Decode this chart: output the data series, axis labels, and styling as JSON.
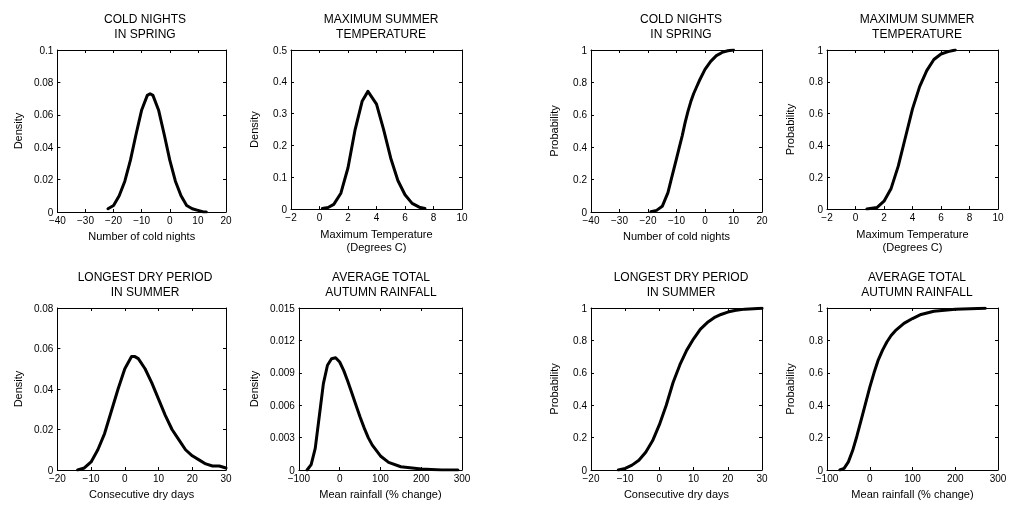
{
  "chart_data": [
    {
      "type": "line",
      "title": "COLD NIGHTS\nIN SPRING",
      "xlabel": "Number of cold nights",
      "ylabel": "Density",
      "color": "#000000",
      "grid": false,
      "x": [
        -22,
        -20,
        -18,
        -16,
        -14,
        -12,
        -10,
        -8,
        -7,
        -6,
        -4,
        -2,
        0,
        2,
        4,
        6,
        8,
        10,
        12,
        13
      ],
      "values": [
        0.002,
        0.004,
        0.01,
        0.019,
        0.032,
        0.048,
        0.063,
        0.072,
        0.073,
        0.072,
        0.063,
        0.048,
        0.032,
        0.019,
        0.01,
        0.004,
        0.002,
        0.001,
        0.0,
        0.0
      ],
      "xlim": [
        -40,
        20
      ],
      "xticks": [
        {
          "value": -40,
          "label": "−40"
        },
        {
          "value": -30,
          "label": "−30"
        },
        {
          "value": -20,
          "label": "−20"
        },
        {
          "value": -10,
          "label": "−10"
        },
        0,
        10,
        20
      ],
      "ylim": [
        0,
        0.1
      ],
      "yticks": [
        0,
        0.02,
        0.04,
        0.06,
        0.08,
        0.1
      ]
    },
    {
      "type": "line",
      "title": "MAXIMUM SUMMER\nTEMPERATURE",
      "xlabel": "Maximum Temperature\n(Degrees C)",
      "ylabel": "Density",
      "color": "#000000",
      "grid": false,
      "x": [
        0.2,
        0.6,
        1,
        1.5,
        2,
        2.5,
        3,
        3.4,
        4,
        4.5,
        5,
        5.5,
        6,
        6.5,
        7,
        7.4
      ],
      "values": [
        0.002,
        0.005,
        0.015,
        0.05,
        0.13,
        0.25,
        0.34,
        0.37,
        0.33,
        0.25,
        0.16,
        0.09,
        0.045,
        0.018,
        0.006,
        0.002
      ],
      "xlim": [
        -2,
        10
      ],
      "xticks": [
        {
          "value": -2,
          "label": "−2"
        },
        0,
        2,
        4,
        6,
        8,
        10
      ],
      "ylim": [
        0,
        0.5
      ],
      "yticks": [
        0,
        0.1,
        0.2,
        0.3,
        0.4,
        0.5
      ]
    },
    {
      "type": "line",
      "title": "COLD NIGHTS\nIN SPRING",
      "xlabel": "Number of cold nights",
      "ylabel": "Probability",
      "color": "#000000",
      "grid": false,
      "x": [
        -19,
        -17,
        -15,
        -13,
        -12,
        -11,
        -10,
        -9,
        -8,
        -7,
        -6,
        -5,
        -4,
        -3,
        -2,
        0,
        2,
        4,
        6,
        8,
        10
      ],
      "values": [
        0.002,
        0.01,
        0.035,
        0.12,
        0.19,
        0.26,
        0.33,
        0.4,
        0.47,
        0.55,
        0.62,
        0.68,
        0.73,
        0.77,
        0.81,
        0.88,
        0.93,
        0.965,
        0.985,
        0.995,
        1.0
      ],
      "xlim": [
        -40,
        20
      ],
      "xticks": [
        {
          "value": -40,
          "label": "−40"
        },
        {
          "value": -30,
          "label": "−30"
        },
        {
          "value": -20,
          "label": "−20"
        },
        {
          "value": -10,
          "label": "−10"
        },
        0,
        10,
        20
      ],
      "ylim": [
        0,
        1
      ],
      "yticks": [
        0,
        0.2,
        0.4,
        0.6,
        0.8,
        1
      ]
    },
    {
      "type": "line",
      "title": "MAXIMUM SUMMER\nTEMPERATURE",
      "xlabel": "Maximum Temperature\n(Degrees C)",
      "ylabel": "Probability",
      "color": "#000000",
      "grid": false,
      "x": [
        0.8,
        1.5,
        2,
        2.5,
        3,
        3.5,
        4,
        4.5,
        5,
        5.5,
        6,
        6.5,
        7
      ],
      "values": [
        0.0,
        0.01,
        0.05,
        0.13,
        0.27,
        0.45,
        0.63,
        0.77,
        0.87,
        0.94,
        0.975,
        0.99,
        1.0
      ],
      "xlim": [
        -2,
        10
      ],
      "xticks": [
        {
          "value": -2,
          "label": "−2"
        },
        0,
        2,
        4,
        6,
        8,
        10
      ],
      "ylim": [
        0,
        1
      ],
      "yticks": [
        0,
        0.2,
        0.4,
        0.6,
        0.8,
        1
      ]
    },
    {
      "type": "line",
      "title": "LONGEST DRY PERIOD\nIN SUMMER",
      "xlabel": "Consecutive dry days",
      "ylabel": "Density",
      "color": "#000000",
      "grid": false,
      "x": [
        -14,
        -12,
        -10,
        -8,
        -6,
        -4,
        -2,
        0,
        2,
        3,
        4,
        6,
        8,
        10,
        12,
        14,
        16,
        18,
        20,
        22,
        24,
        26,
        28,
        30
      ],
      "values": [
        0.0,
        0.001,
        0.004,
        0.01,
        0.018,
        0.029,
        0.04,
        0.05,
        0.056,
        0.056,
        0.055,
        0.05,
        0.043,
        0.035,
        0.027,
        0.02,
        0.015,
        0.01,
        0.007,
        0.005,
        0.003,
        0.002,
        0.002,
        0.001
      ],
      "xlim": [
        -20,
        30
      ],
      "xticks": [
        {
          "value": -20,
          "label": "−20"
        },
        {
          "value": -10,
          "label": "−10"
        },
        0,
        10,
        20,
        30
      ],
      "ylim": [
        0,
        0.08
      ],
      "yticks": [
        0,
        0.02,
        0.04,
        0.06,
        0.08
      ]
    },
    {
      "type": "line",
      "title": "AVERAGE TOTAL\nAUTUMN RAINFALL",
      "xlabel": "Mean rainfall (% change)",
      "ylabel": "Density",
      "color": "#000000",
      "grid": false,
      "x": [
        -80,
        -70,
        -60,
        -50,
        -40,
        -30,
        -20,
        -10,
        0,
        10,
        20,
        30,
        40,
        50,
        60,
        70,
        80,
        100,
        120,
        150,
        200,
        250,
        290
      ],
      "values": [
        0.0,
        0.0005,
        0.002,
        0.005,
        0.008,
        0.0097,
        0.0103,
        0.0104,
        0.01,
        0.0092,
        0.0082,
        0.0071,
        0.006,
        0.0049,
        0.0039,
        0.003,
        0.0023,
        0.0013,
        0.0007,
        0.0003,
        0.0001,
        0.0,
        0.0
      ],
      "xlim": [
        -100,
        300
      ],
      "xticks": [
        {
          "value": -100,
          "label": "−100"
        },
        0,
        100,
        200,
        300
      ],
      "ylim": [
        0,
        0.015
      ],
      "yticks": [
        0,
        0.003,
        0.006,
        0.009,
        0.012,
        0.015
      ]
    },
    {
      "type": "line",
      "title": "LONGEST DRY PERIOD\nIN SUMMER",
      "xlabel": "Consecutive dry days",
      "ylabel": "Probability",
      "color": "#000000",
      "grid": false,
      "x": [
        -12,
        -10,
        -8,
        -6,
        -4,
        -2,
        0,
        2,
        4,
        6,
        8,
        10,
        12,
        14,
        16,
        18,
        20,
        22,
        25,
        30
      ],
      "values": [
        0.0,
        0.01,
        0.03,
        0.06,
        0.11,
        0.18,
        0.28,
        0.4,
        0.54,
        0.65,
        0.74,
        0.81,
        0.87,
        0.91,
        0.94,
        0.96,
        0.975,
        0.985,
        0.993,
        0.998
      ],
      "xlim": [
        -20,
        30
      ],
      "xticks": [
        {
          "value": -20,
          "label": "−20"
        },
        {
          "value": -10,
          "label": "−10"
        },
        0,
        10,
        20,
        30
      ],
      "ylim": [
        0,
        1
      ],
      "yticks": [
        0,
        0.2,
        0.4,
        0.6,
        0.8,
        1
      ]
    },
    {
      "type": "line",
      "title": "AVERAGE TOTAL\nAUTUMN RAINFALL",
      "xlabel": "Mean rainfall (% change)",
      "ylabel": "Probability",
      "color": "#000000",
      "grid": false,
      "x": [
        -70,
        -60,
        -50,
        -40,
        -30,
        -20,
        -10,
        0,
        10,
        20,
        30,
        40,
        50,
        60,
        80,
        100,
        120,
        150,
        200,
        270
      ],
      "values": [
        0.0,
        0.01,
        0.05,
        0.12,
        0.21,
        0.31,
        0.41,
        0.51,
        0.6,
        0.68,
        0.74,
        0.79,
        0.83,
        0.86,
        0.905,
        0.935,
        0.96,
        0.98,
        0.993,
        0.998
      ],
      "xlim": [
        -100,
        300
      ],
      "xticks": [
        {
          "value": -100,
          "label": "−100"
        },
        0,
        100,
        200,
        300
      ],
      "ylim": [
        0,
        1
      ],
      "yticks": [
        0,
        0.2,
        0.4,
        0.6,
        0.8,
        1
      ]
    }
  ]
}
